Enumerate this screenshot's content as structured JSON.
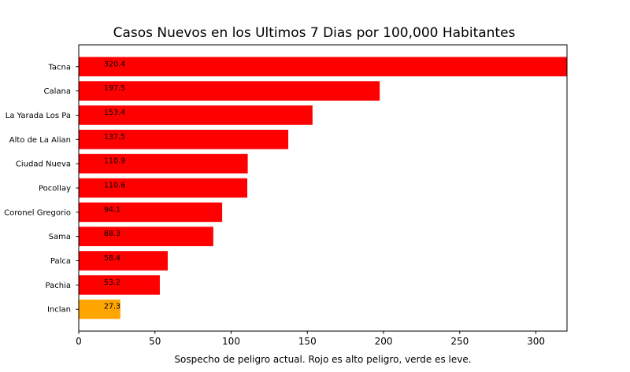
{
  "chart_data": {
    "type": "bar",
    "orientation": "horizontal",
    "title": "Casos Nuevos en los Ultimos 7 Dias por 100,000 Habitantes",
    "xlabel": "Sospecho de peligro actual. Rojo es alto peligro, verde es leve.",
    "ylabel": "",
    "xlim": [
      0,
      320.4
    ],
    "xticks": [
      0,
      50,
      100,
      150,
      200,
      250,
      300
    ],
    "categories": [
      "Tacna",
      "Calana",
      "La Yarada Los Pa",
      "Alto de La Alian",
      "Ciudad Nueva",
      "Pocollay",
      "Coronel Gregorio",
      "Sama",
      "Palca",
      "Pachia",
      "Inclan"
    ],
    "values": [
      320.4,
      197.5,
      153.4,
      137.5,
      110.9,
      110.6,
      94.1,
      88.3,
      58.4,
      53.2,
      27.3
    ],
    "data_labels": [
      "320.4",
      "197.5",
      "153.4",
      "137.5",
      "110.9",
      "110.6",
      "94.1",
      "88.3",
      "58.4",
      "53.2",
      "27.3"
    ],
    "colors": [
      "#ff0000",
      "#ff0000",
      "#ff0000",
      "#ff0000",
      "#ff0000",
      "#ff0000",
      "#ff0000",
      "#ff0000",
      "#ff0000",
      "#ff0000",
      "#ffa500"
    ],
    "grid": false,
    "legend": "none"
  }
}
